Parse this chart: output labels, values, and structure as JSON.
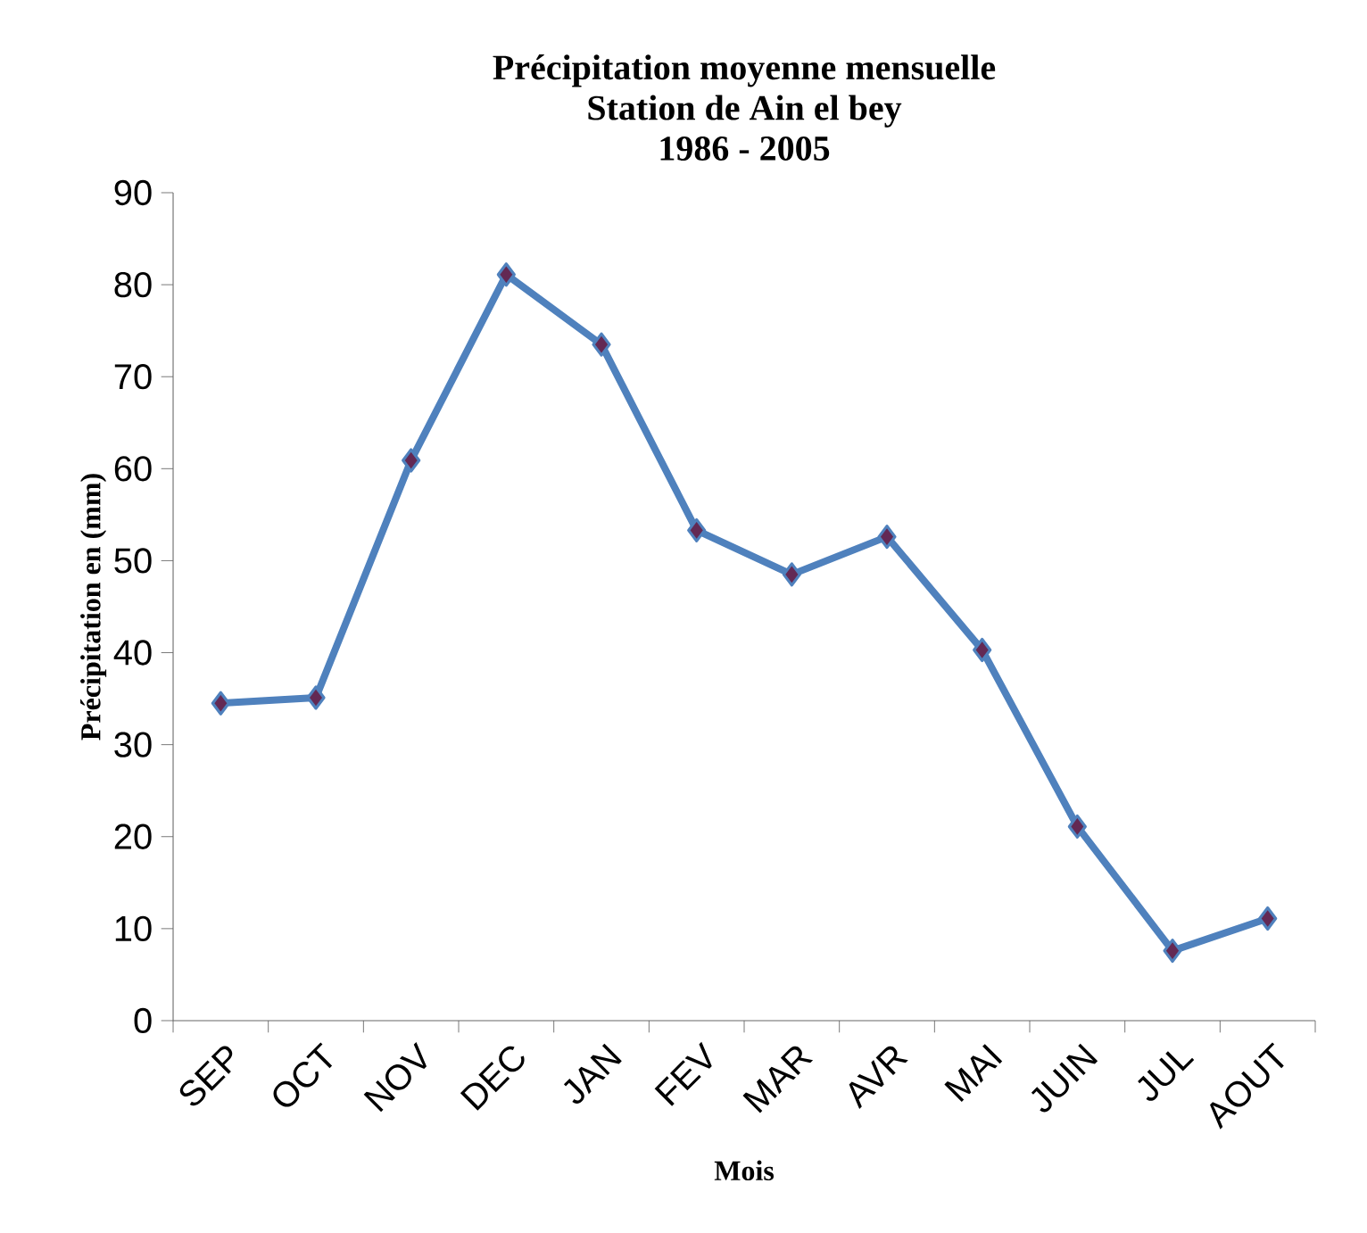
{
  "chart_data": {
    "type": "line",
    "title": "Précipitation moyenne mensuelle\nStation de Ain el bey\n1986 - 2005",
    "xlabel": "Mois",
    "ylabel": "Précipitation en (mm)",
    "categories": [
      "SEP",
      "OCT",
      "NOV",
      "DEC",
      "JAN",
      "FEV",
      "MAR",
      "AVR",
      "MAI",
      "JUIN",
      "JUL",
      "AOUT"
    ],
    "values": [
      34.5,
      35.1,
      60.9,
      81.1,
      73.5,
      53.3,
      48.5,
      52.6,
      40.3,
      21.1,
      7.6,
      11.1
    ],
    "color": "#4f81bd",
    "marker": "diamond",
    "line_style": "solid",
    "ylim": [
      0,
      90
    ],
    "yticks": [
      0,
      10,
      20,
      30,
      40,
      50,
      60,
      70,
      80,
      90
    ]
  }
}
